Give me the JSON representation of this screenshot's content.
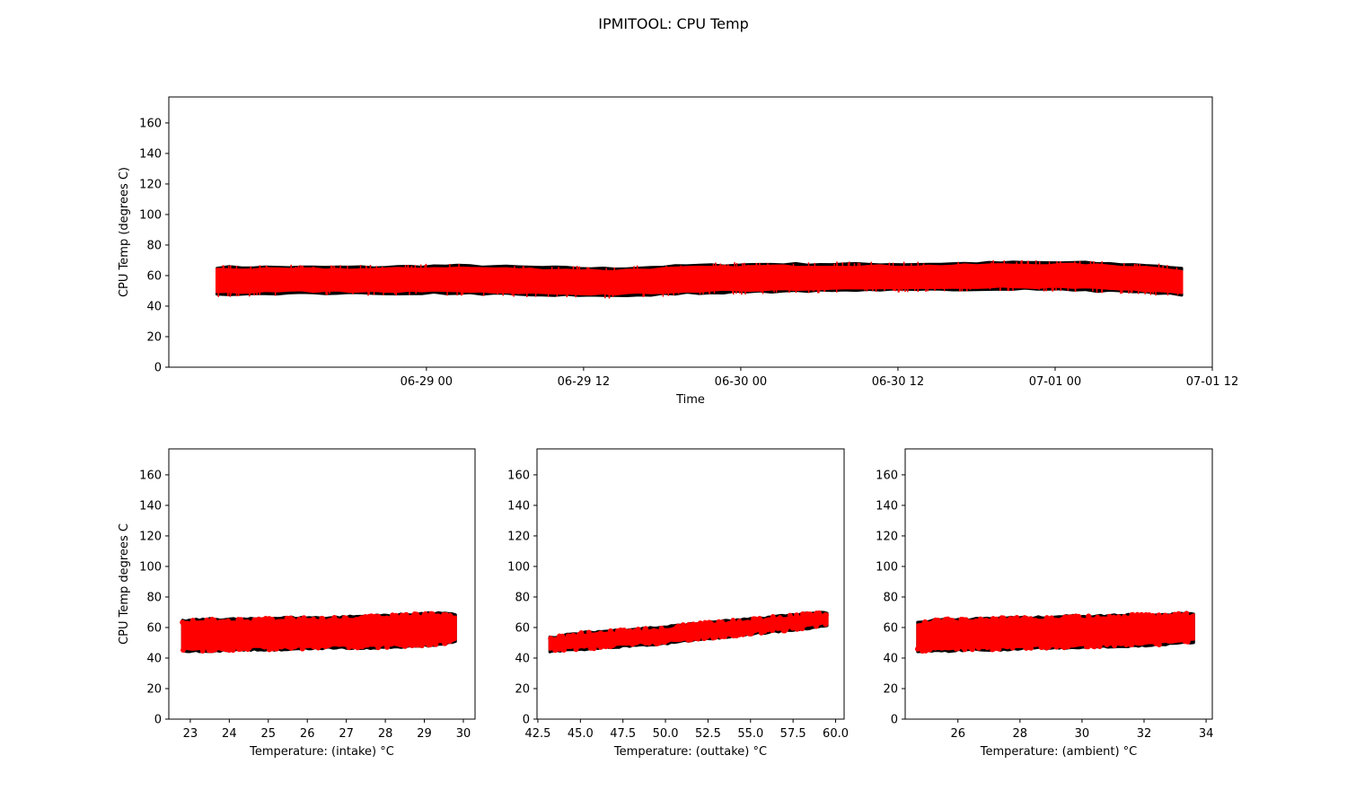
{
  "figure": {
    "title": "IPMITOOL: CPU Temp"
  },
  "colors": {
    "series_primary": "#ff0000",
    "series_shadow": "#000000",
    "axes": "#000000",
    "background": "#ffffff"
  },
  "chart_data": [
    {
      "id": "time",
      "type": "line",
      "title": "",
      "xlabel": "Time",
      "ylabel": "CPU Temp (degrees C)",
      "xlim": [
        "2019-06-28 04:20",
        "2019-07-01 12:00"
      ],
      "ylim": [
        0,
        177
      ],
      "yticks": [
        0,
        20,
        40,
        60,
        80,
        100,
        120,
        140,
        160
      ],
      "xticks": [
        {
          "value": "2019-06-29 00:00",
          "label": "06-29 00"
        },
        {
          "value": "2019-06-29 12:00",
          "label": "06-29 12"
        },
        {
          "value": "2019-06-30 00:00",
          "label": "06-30 00"
        },
        {
          "value": "2019-06-30 12:00",
          "label": "06-30 12"
        },
        {
          "value": "2019-07-01 00:00",
          "label": "07-01 00"
        },
        {
          "value": "2019-07-01 12:00",
          "label": "07-01 12"
        }
      ],
      "series": [
        {
          "color": "#ff0000",
          "x": [
            "2019-06-28 08:00",
            "2019-06-28 14:00",
            "2019-06-28 20:00",
            "2019-06-29 02:00",
            "2019-06-29 08:00",
            "2019-06-29 14:00",
            "2019-06-29 20:00",
            "2019-06-30 02:00",
            "2019-06-30 08:00",
            "2019-06-30 14:00",
            "2019-06-30 20:00",
            "2019-07-01 02:00",
            "2019-07-01 08:00",
            "2019-07-01 09:40"
          ],
          "y_min": [
            49,
            50,
            50,
            50,
            49,
            48,
            50,
            51,
            52,
            52,
            53,
            52,
            50,
            49
          ],
          "y_max": [
            64,
            64,
            64,
            65,
            64,
            63,
            65,
            66,
            66,
            66,
            67,
            67,
            65,
            63
          ]
        }
      ]
    },
    {
      "id": "intake",
      "type": "scatter",
      "title": "",
      "xlabel": "Temperature: (intake) °C",
      "ylabel": "CPU Temp degrees C",
      "xlim": [
        22.45,
        30.3
      ],
      "ylim": [
        0,
        177
      ],
      "xticks": [
        23,
        24,
        25,
        26,
        27,
        28,
        29,
        30
      ],
      "yticks": [
        0,
        20,
        40,
        60,
        80,
        100,
        120,
        140,
        160
      ],
      "series": [
        {
          "color": "#ff0000",
          "x": [
            22.8,
            23.5,
            24.5,
            25.5,
            26.5,
            27.5,
            28.5,
            29.3,
            29.8
          ],
          "y_min": [
            46,
            46,
            47,
            47,
            48,
            48,
            49,
            50,
            52
          ],
          "y_max": [
            63,
            64,
            64,
            65,
            65,
            66,
            67,
            68,
            67
          ]
        }
      ]
    },
    {
      "id": "outtake",
      "type": "scatter",
      "title": "",
      "xlabel": "Temperature: (outtake) °C",
      "ylabel": "",
      "xlim": [
        42.45,
        60.5
      ],
      "ylim": [
        0,
        177
      ],
      "xticks": [
        42.5,
        45.0,
        47.5,
        50.0,
        52.5,
        55.0,
        57.5,
        60.0
      ],
      "xtick_labels": [
        "42.5",
        "45.0",
        "47.5",
        "50.0",
        "52.5",
        "55.0",
        "57.5",
        "60.0"
      ],
      "yticks": [
        0,
        20,
        40,
        60,
        80,
        100,
        120,
        140,
        160
      ],
      "series": [
        {
          "color": "#ff0000",
          "x": [
            43.2,
            45.0,
            47.5,
            50.0,
            52.5,
            55.0,
            57.5,
            58.5,
            59.5
          ],
          "y_min": [
            46,
            47,
            49,
            51,
            54,
            57,
            60,
            61,
            63
          ],
          "y_max": [
            52,
            55,
            57,
            59,
            62,
            64,
            67,
            68,
            68
          ]
        }
      ]
    },
    {
      "id": "ambient",
      "type": "scatter",
      "title": "",
      "xlabel": "Temperature: (ambient) °C",
      "ylabel": "",
      "xlim": [
        24.3,
        34.2
      ],
      "ylim": [
        0,
        177
      ],
      "xticks": [
        26,
        28,
        30,
        32,
        34
      ],
      "yticks": [
        0,
        20,
        40,
        60,
        80,
        100,
        120,
        140,
        160
      ],
      "series": [
        {
          "color": "#ff0000",
          "x": [
            24.7,
            25.5,
            26.5,
            27.5,
            28.5,
            29.5,
            30.5,
            31.5,
            32.5,
            33.6
          ],
          "y_min": [
            46,
            46,
            47,
            47,
            48,
            48,
            49,
            49,
            50,
            52
          ],
          "y_max": [
            62,
            64,
            64,
            65,
            65,
            66,
            66,
            67,
            67,
            68
          ]
        }
      ]
    }
  ]
}
